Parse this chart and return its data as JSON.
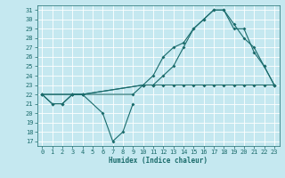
{
  "xlabel": "Humidex (Indice chaleur)",
  "bg_color": "#c5e8f0",
  "grid_color": "#ffffff",
  "line_color": "#1a6b6b",
  "xlim": [
    -0.5,
    23.5
  ],
  "ylim": [
    16.5,
    31.5
  ],
  "yticks": [
    17,
    18,
    19,
    20,
    21,
    22,
    23,
    24,
    25,
    26,
    27,
    28,
    29,
    30,
    31
  ],
  "xticks": [
    0,
    1,
    2,
    3,
    4,
    5,
    6,
    7,
    8,
    9,
    10,
    11,
    12,
    13,
    14,
    15,
    16,
    17,
    18,
    19,
    20,
    21,
    22,
    23
  ],
  "series": [
    {
      "x": [
        0,
        1,
        2,
        3,
        4,
        6,
        7,
        8,
        9
      ],
      "y": [
        22,
        21,
        21,
        22,
        22,
        20,
        17,
        18,
        21
      ]
    },
    {
      "x": [
        0,
        1,
        2,
        3,
        4,
        9,
        10,
        11,
        12,
        13,
        14,
        15,
        16,
        17,
        18,
        19,
        20,
        21,
        22,
        23
      ],
      "y": [
        22,
        21,
        21,
        22,
        22,
        22,
        23,
        23,
        23,
        23,
        23,
        23,
        23,
        23,
        23,
        23,
        23,
        23,
        23,
        23
      ]
    },
    {
      "x": [
        0,
        3,
        4,
        10,
        11,
        12,
        13,
        14,
        15,
        16,
        17,
        18,
        19,
        20,
        21,
        22,
        23
      ],
      "y": [
        22,
        22,
        22,
        23,
        24,
        26,
        27,
        27.5,
        29,
        30,
        31,
        31,
        29.5,
        28,
        27,
        25,
        23
      ]
    },
    {
      "x": [
        0,
        3,
        4,
        10,
        11,
        12,
        13,
        14,
        15,
        16,
        17,
        18,
        19,
        20,
        21,
        22,
        23
      ],
      "y": [
        22,
        22,
        22,
        23,
        23,
        24,
        25,
        27,
        29,
        30,
        31,
        31,
        29,
        29,
        26.5,
        25,
        23
      ]
    }
  ]
}
